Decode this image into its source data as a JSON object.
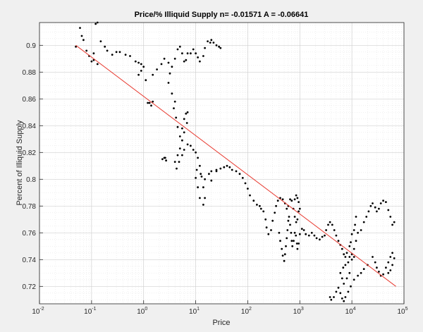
{
  "chart_data": {
    "type": "scatter",
    "title": "Price/% Illiquid Supply n= -0.01571 A = -0.06641",
    "xlabel": "Price",
    "ylabel": "Percent of Illiquid Supply",
    "xscale": "log",
    "xlim": [
      0.01,
      100000
    ],
    "ylim": [
      0.707,
      0.917
    ],
    "grid": true,
    "minor_grid": true,
    "x_ticks": [
      {
        "value": 0.01,
        "base": "10",
        "exp": "-2"
      },
      {
        "value": 0.1,
        "base": "10",
        "exp": "-1"
      },
      {
        "value": 1,
        "base": "10",
        "exp": "0"
      },
      {
        "value": 10,
        "base": "10",
        "exp": "1"
      },
      {
        "value": 100,
        "base": "10",
        "exp": "2"
      },
      {
        "value": 1000,
        "base": "10",
        "exp": "3"
      },
      {
        "value": 10000,
        "base": "10",
        "exp": "4"
      },
      {
        "value": 100000,
        "base": "10",
        "exp": "5"
      }
    ],
    "y_ticks": [
      "0.72",
      "0.74",
      "0.76",
      "0.78",
      "0.8",
      "0.82",
      "0.84",
      "0.86",
      "0.88",
      "0.9"
    ],
    "series": [
      {
        "type": "scatter",
        "color": "#000000",
        "points": [
          [
            0.05,
            0.899
          ],
          [
            0.06,
            0.913
          ],
          [
            0.065,
            0.907
          ],
          [
            0.07,
            0.904
          ],
          [
            0.08,
            0.896
          ],
          [
            0.09,
            0.892
          ],
          [
            0.1,
            0.888
          ],
          [
            0.11,
            0.894
          ],
          [
            0.12,
            0.916
          ],
          [
            0.13,
            0.917
          ],
          [
            0.15,
            0.903
          ],
          [
            0.18,
            0.899
          ],
          [
            0.2,
            0.896
          ],
          [
            0.25,
            0.893
          ],
          [
            0.3,
            0.895
          ],
          [
            0.35,
            0.895
          ],
          [
            0.45,
            0.893
          ],
          [
            0.55,
            0.892
          ],
          [
            0.7,
            0.888
          ],
          [
            0.8,
            0.887
          ],
          [
            0.9,
            0.886
          ],
          [
            1.0,
            0.884
          ],
          [
            0.9,
            0.881
          ],
          [
            0.8,
            0.878
          ],
          [
            1.1,
            0.874
          ],
          [
            1.5,
            0.878
          ],
          [
            1.8,
            0.882
          ],
          [
            2.2,
            0.886
          ],
          [
            2.5,
            0.89
          ],
          [
            3.0,
            0.887
          ],
          [
            3.5,
            0.884
          ],
          [
            4.0,
            0.89
          ],
          [
            4.5,
            0.897
          ],
          [
            5.0,
            0.899
          ],
          [
            5.5,
            0.894
          ],
          [
            6.0,
            0.888
          ],
          [
            6.5,
            0.889
          ],
          [
            7.0,
            0.894
          ],
          [
            8.0,
            0.894
          ],
          [
            9.0,
            0.897
          ],
          [
            10.0,
            0.894
          ],
          [
            11.0,
            0.891
          ],
          [
            12.0,
            0.888
          ],
          [
            14.0,
            0.892
          ],
          [
            15.0,
            0.898
          ],
          [
            17.0,
            0.903
          ],
          [
            19.0,
            0.902
          ],
          [
            20.0,
            0.904
          ],
          [
            22.0,
            0.902
          ],
          [
            25.0,
            0.9
          ],
          [
            28.0,
            0.899
          ],
          [
            30.0,
            0.898
          ],
          [
            3.2,
            0.879
          ],
          [
            3.0,
            0.872
          ],
          [
            3.5,
            0.864
          ],
          [
            4.0,
            0.858
          ],
          [
            3.8,
            0.853
          ],
          [
            4.2,
            0.846
          ],
          [
            4.5,
            0.839
          ],
          [
            5.0,
            0.832
          ],
          [
            5.5,
            0.838
          ],
          [
            6.0,
            0.845
          ],
          [
            6.5,
            0.849
          ],
          [
            7.0,
            0.85
          ],
          [
            6.8,
            0.842
          ],
          [
            6.0,
            0.835
          ],
          [
            5.5,
            0.829
          ],
          [
            5.0,
            0.823
          ],
          [
            4.5,
            0.818
          ],
          [
            4.0,
            0.813
          ],
          [
            4.3,
            0.808
          ],
          [
            4.8,
            0.813
          ],
          [
            5.5,
            0.818
          ],
          [
            6.0,
            0.822
          ],
          [
            7.0,
            0.826
          ],
          [
            8.0,
            0.825
          ],
          [
            9.0,
            0.822
          ],
          [
            10.0,
            0.82
          ],
          [
            11.0,
            0.816
          ],
          [
            12.0,
            0.81
          ],
          [
            13.0,
            0.802
          ],
          [
            14.0,
            0.794
          ],
          [
            15.0,
            0.786
          ],
          [
            14.0,
            0.781
          ],
          [
            12.0,
            0.786
          ],
          [
            11.0,
            0.794
          ],
          [
            10.0,
            0.801
          ],
          [
            10.5,
            0.807
          ],
          [
            12.5,
            0.804
          ],
          [
            15.0,
            0.8
          ],
          [
            18.0,
            0.804
          ],
          [
            20.0,
            0.806
          ],
          [
            25.0,
            0.807
          ],
          [
            30.0,
            0.808
          ],
          [
            35.0,
            0.809
          ],
          [
            40.0,
            0.81
          ],
          [
            45.0,
            0.809
          ],
          [
            50.0,
            0.807
          ],
          [
            60.0,
            0.806
          ],
          [
            70.0,
            0.804
          ],
          [
            80.0,
            0.801
          ],
          [
            90.0,
            0.797
          ],
          [
            100.0,
            0.793
          ],
          [
            110.0,
            0.788
          ],
          [
            130.0,
            0.784
          ],
          [
            150.0,
            0.781
          ],
          [
            170.0,
            0.78
          ],
          [
            180.0,
            0.778
          ],
          [
            2.5,
            0.816
          ],
          [
            2.7,
            0.814
          ],
          [
            1.2,
            0.857
          ],
          [
            1.5,
            0.858
          ],
          [
            0.11,
            0.889
          ],
          [
            0.13,
            0.886
          ],
          [
            20.0,
            0.799
          ],
          [
            25.0,
            0.806
          ],
          [
            1.3,
            0.857
          ],
          [
            1.4,
            0.855
          ],
          [
            2.3,
            0.815
          ],
          [
            2.6,
            0.816
          ],
          [
            200.0,
            0.776
          ],
          [
            220.0,
            0.77
          ],
          [
            230.0,
            0.764
          ],
          [
            250.0,
            0.759
          ],
          [
            280.0,
            0.762
          ],
          [
            300.0,
            0.769
          ],
          [
            330.0,
            0.775
          ],
          [
            350.0,
            0.78
          ],
          [
            380.0,
            0.784
          ],
          [
            420.0,
            0.786
          ],
          [
            470.0,
            0.785
          ],
          [
            520.0,
            0.782
          ],
          [
            560.0,
            0.778
          ],
          [
            600.0,
            0.78
          ],
          [
            650.0,
            0.785
          ],
          [
            700.0,
            0.784
          ],
          [
            750.0,
            0.778
          ],
          [
            800.0,
            0.772
          ],
          [
            850.0,
            0.768
          ],
          [
            900.0,
            0.77
          ],
          [
            950.0,
            0.776
          ],
          [
            1000.0,
            0.778
          ],
          [
            950.0,
            0.783
          ],
          [
            900.0,
            0.786
          ],
          [
            850.0,
            0.788
          ],
          [
            800.0,
            0.785
          ],
          [
            400.0,
            0.76
          ],
          [
            420.0,
            0.754
          ],
          [
            450.0,
            0.748
          ],
          [
            470.0,
            0.743
          ],
          [
            500.0,
            0.739
          ],
          [
            520.0,
            0.744
          ],
          [
            540.0,
            0.75
          ],
          [
            560.0,
            0.756
          ],
          [
            580.0,
            0.762
          ],
          [
            600.0,
            0.769
          ],
          [
            620.0,
            0.772
          ],
          [
            650.0,
            0.766
          ],
          [
            680.0,
            0.76
          ],
          [
            700.0,
            0.754
          ],
          [
            720.0,
            0.75
          ],
          [
            760.0,
            0.754
          ],
          [
            800.0,
            0.76
          ],
          [
            840.0,
            0.758
          ],
          [
            880.0,
            0.752
          ],
          [
            900.0,
            0.748
          ],
          [
            950.0,
            0.752
          ],
          [
            1000.0,
            0.759
          ],
          [
            1100.0,
            0.763
          ],
          [
            1200.0,
            0.762
          ],
          [
            1300.0,
            0.759
          ],
          [
            1500.0,
            0.758
          ],
          [
            1700.0,
            0.76
          ],
          [
            1900.0,
            0.758
          ],
          [
            2100.0,
            0.756
          ],
          [
            2400.0,
            0.755
          ],
          [
            2700.0,
            0.757
          ],
          [
            3000.0,
            0.758
          ],
          [
            3200.0,
            0.762
          ],
          [
            3500.0,
            0.766
          ],
          [
            3800.0,
            0.768
          ],
          [
            4200.0,
            0.766
          ],
          [
            4600.0,
            0.762
          ],
          [
            5000.0,
            0.758
          ],
          [
            5500.0,
            0.754
          ],
          [
            6000.0,
            0.751
          ],
          [
            6500.0,
            0.748
          ],
          [
            7000.0,
            0.744
          ],
          [
            7500.0,
            0.742
          ],
          [
            8000.0,
            0.745
          ],
          [
            9000.0,
            0.742
          ],
          [
            10000.0,
            0.744
          ],
          [
            11000.0,
            0.748
          ],
          [
            12000.0,
            0.754
          ],
          [
            13000.0,
            0.76
          ],
          [
            15000.0,
            0.762
          ],
          [
            17000.0,
            0.768
          ],
          [
            19000.0,
            0.772
          ],
          [
            21000.0,
            0.776
          ],
          [
            23000.0,
            0.78
          ],
          [
            25000.0,
            0.782
          ],
          [
            28000.0,
            0.779
          ],
          [
            30000.0,
            0.776
          ],
          [
            33000.0,
            0.778
          ],
          [
            36000.0,
            0.782
          ],
          [
            40000.0,
            0.784
          ],
          [
            45000.0,
            0.783
          ],
          [
            50000.0,
            0.777
          ],
          [
            55000.0,
            0.772
          ],
          [
            60000.0,
            0.766
          ],
          [
            65000.0,
            0.768
          ],
          [
            12000.0,
            0.772
          ],
          [
            11500.0,
            0.766
          ],
          [
            11000.0,
            0.762
          ],
          [
            10000.0,
            0.759
          ],
          [
            9500.0,
            0.753
          ],
          [
            9000.0,
            0.75
          ],
          [
            25000.0,
            0.742
          ],
          [
            28000.0,
            0.738
          ],
          [
            30000.0,
            0.734
          ],
          [
            33000.0,
            0.731
          ],
          [
            36000.0,
            0.728
          ],
          [
            40000.0,
            0.729
          ],
          [
            45000.0,
            0.734
          ],
          [
            50000.0,
            0.738
          ],
          [
            55000.0,
            0.742
          ],
          [
            60000.0,
            0.745
          ],
          [
            65000.0,
            0.741
          ],
          [
            60000.0,
            0.736
          ],
          [
            55000.0,
            0.732
          ],
          [
            50000.0,
            0.73
          ],
          [
            20000.0,
            0.736
          ],
          [
            17000.0,
            0.733
          ],
          [
            15000.0,
            0.73
          ],
          [
            13000.0,
            0.728
          ],
          [
            11000.0,
            0.725
          ],
          [
            9500.0,
            0.72
          ],
          [
            8500.0,
            0.716
          ],
          [
            7500.0,
            0.712
          ],
          [
            7000.0,
            0.709
          ],
          [
            6500.0,
            0.711
          ],
          [
            6000.0,
            0.715
          ],
          [
            5500.0,
            0.719
          ],
          [
            5000.0,
            0.716
          ],
          [
            4500.0,
            0.712
          ],
          [
            4000.0,
            0.71
          ],
          [
            3800.0,
            0.712
          ],
          [
            9000.0,
            0.73
          ],
          [
            8000.0,
            0.726
          ],
          [
            7000.0,
            0.722
          ],
          [
            6500.0,
            0.726
          ],
          [
            6000.0,
            0.73
          ],
          [
            6800.0,
            0.734
          ],
          [
            7500.0,
            0.736
          ],
          [
            8500.0,
            0.738
          ],
          [
            10000.0,
            0.74
          ],
          [
            11000.0,
            0.742
          ]
        ]
      },
      {
        "type": "line",
        "color": "#e8392f",
        "points": [
          [
            0.05,
            0.9
          ],
          [
            70000,
            0.72
          ]
        ]
      }
    ]
  }
}
